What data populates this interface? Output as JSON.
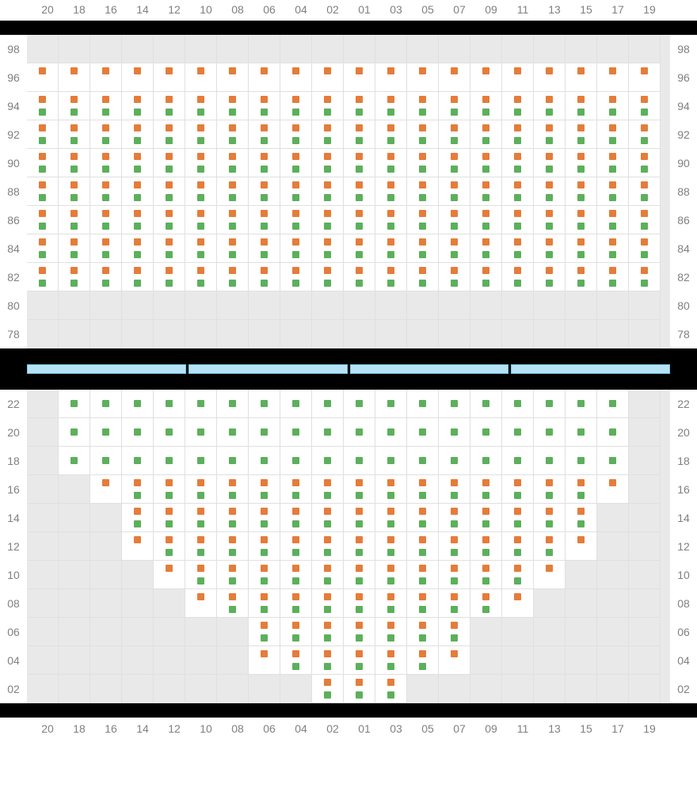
{
  "colors": {
    "orange": "#e57c3a",
    "green": "#5cb05c",
    "empty_bg": "#e9e9e9",
    "active_bg": "#ffffff",
    "grid_line": "#e0e0e0",
    "label": "#808080",
    "bar": "#000000",
    "blue_fill": "#b6e2f6",
    "blue_border": "#7fc6e8"
  },
  "columns": [
    "20",
    "18",
    "16",
    "14",
    "12",
    "10",
    "08",
    "06",
    "04",
    "02",
    "01",
    "03",
    "05",
    "07",
    "09",
    "11",
    "13",
    "15",
    "17",
    "19"
  ],
  "blue_segments": 4,
  "top_section": {
    "rows": [
      "98",
      "96",
      "94",
      "92",
      "90",
      "88",
      "86",
      "84",
      "82",
      "80",
      "78"
    ],
    "cells": [
      {
        "row": "98",
        "all_active": false
      },
      {
        "row": "96",
        "all_active": true,
        "top": "orange"
      },
      {
        "row": "94",
        "all_active": true,
        "top": "orange",
        "bot": "green"
      },
      {
        "row": "92",
        "all_active": true,
        "top": "orange",
        "bot": "green"
      },
      {
        "row": "90",
        "all_active": true,
        "top": "orange",
        "bot": "green"
      },
      {
        "row": "88",
        "all_active": true,
        "top": "orange",
        "bot": "green"
      },
      {
        "row": "86",
        "all_active": true,
        "top": "orange",
        "bot": "green"
      },
      {
        "row": "84",
        "all_active": true,
        "top": "orange",
        "bot": "green"
      },
      {
        "row": "82",
        "all_active": true,
        "top": "orange",
        "bot": "green"
      },
      {
        "row": "80",
        "all_active": false
      },
      {
        "row": "78",
        "all_active": false
      }
    ]
  },
  "bottom_section": {
    "rows": [
      "22",
      "20",
      "18",
      "16",
      "14",
      "12",
      "10",
      "08",
      "06",
      "04",
      "02"
    ],
    "cells": [
      {
        "row": "22",
        "active_from": 1,
        "active_to": 18,
        "mid": "green"
      },
      {
        "row": "20",
        "active_from": 1,
        "active_to": 18,
        "mid": "green"
      },
      {
        "row": "18",
        "active_from": 1,
        "active_to": 18,
        "mid": "green"
      },
      {
        "row": "16",
        "active_from": 3,
        "active_to": 17,
        "top": "orange",
        "bot": "green",
        "edge": "top_orange_only",
        "edge_from": 2,
        "edge_to": 18
      },
      {
        "row": "14",
        "active_from": 3,
        "active_to": 17,
        "top": "orange",
        "bot": "green"
      },
      {
        "row": "12",
        "active_from": 4,
        "active_to": 16,
        "top": "orange",
        "bot": "green",
        "edge": "top_orange_only",
        "edge_from": 3,
        "edge_to": 17
      },
      {
        "row": "10",
        "active_from": 5,
        "active_to": 15,
        "top": "orange",
        "bot": "green",
        "edge": "top_orange_only",
        "edge_from": 4,
        "edge_to": 16
      },
      {
        "row": "08",
        "active_from": 6,
        "active_to": 14,
        "top": "orange",
        "bot": "green",
        "edge": "top_orange_only",
        "edge_from": 5,
        "edge_to": 15
      },
      {
        "row": "06",
        "active_from": 7,
        "active_to": 13,
        "top": "orange",
        "bot": "green"
      },
      {
        "row": "04",
        "active_from": 8,
        "active_to": 12,
        "top": "orange",
        "bot": "green",
        "edge": "top_orange_only",
        "edge_from": 7,
        "edge_to": 13
      },
      {
        "row": "02",
        "active_from": 9,
        "active_to": 11,
        "top": "orange",
        "bot": "green"
      }
    ]
  }
}
